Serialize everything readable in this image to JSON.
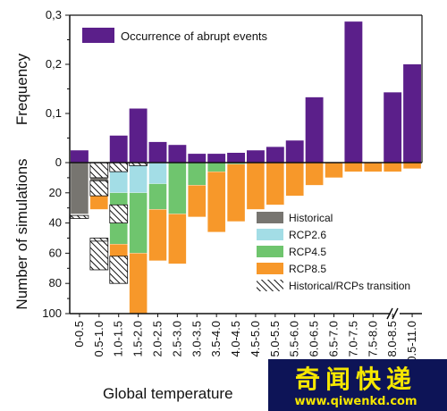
{
  "chart_data": [
    {
      "type": "bar",
      "panel": "top",
      "ylabel": "Frequency",
      "ylim": [
        0,
        0.3
      ],
      "yticks": [
        0,
        0.1,
        0.2,
        0.3
      ],
      "ytick_labels": [
        "0",
        "0,1",
        "0,2",
        "0,3"
      ],
      "categories": [
        "0-0.5",
        "0.5-1.0",
        "1.0-1.5",
        "1.5-2.0",
        "2.0-2.5",
        "2.5-3.0",
        "3.0-3.5",
        "3.5-4.0",
        "4.0-4.5",
        "4.5-5.0",
        "5.0-5.5",
        "5.5-6.0",
        "6.0-6.5",
        "6.5-7.0",
        "7.0-7.5",
        "7.5-8.0",
        "8.0-8.5",
        "10.5-11.0"
      ],
      "series": [
        {
          "name": "Occurrence of abrupt events",
          "color": "#5b1f8a",
          "values": [
            0.025,
            0,
            0.055,
            0.11,
            0.042,
            0.036,
            0.018,
            0.018,
            0.02,
            0.025,
            0.032,
            0.045,
            0.133,
            0,
            0.287,
            0,
            0.143,
            0.2
          ]
        }
      ],
      "legend": "top-left"
    },
    {
      "type": "bar",
      "panel": "bottom",
      "stacked": true,
      "direction": "downward",
      "ylabel": "Number of simulations",
      "ylim": [
        0,
        100
      ],
      "yticks": [
        0,
        20,
        40,
        60,
        80,
        100
      ],
      "series": [
        {
          "name": "Historical",
          "color": "#777570",
          "values": [
            34,
            12,
            0,
            0,
            0,
            0,
            0,
            0,
            0,
            0,
            0,
            0,
            0,
            0,
            0,
            0,
            0,
            0
          ]
        },
        {
          "name": "RCP2.6",
          "color": "#a3dde6",
          "values": [
            0,
            0,
            20,
            20,
            14,
            0,
            0,
            0,
            0,
            0,
            0,
            0,
            0,
            0,
            0,
            0,
            0,
            0
          ]
        },
        {
          "name": "RCP4.5",
          "color": "#6fc56e",
          "values": [
            0,
            0,
            34,
            40,
            17,
            34,
            15,
            6,
            1,
            0,
            0,
            0,
            0,
            0,
            0,
            0,
            0,
            0
          ]
        },
        {
          "name": "RCP8.5",
          "color": "#f7982a",
          "values": [
            0,
            19,
            19,
            40,
            34,
            33,
            21,
            40,
            38,
            31,
            28,
            22,
            15,
            10,
            6,
            6,
            6,
            4
          ]
        },
        {
          "name": "Historical/RCPs transition",
          "color": "#ffffff",
          "hatch_segments": [
            [
              0,
              35,
              37
            ],
            [
              1,
              0,
              10
            ],
            [
              1,
              12,
              22
            ],
            [
              1,
              50,
              52
            ],
            [
              1,
              52,
              71
            ],
            [
              2,
              0,
              6
            ],
            [
              2,
              28,
              40
            ],
            [
              2,
              62,
              80
            ],
            [
              3,
              0,
              2
            ]
          ]
        }
      ],
      "legend": "bottom-right"
    }
  ],
  "xlabel": "Global temperature",
  "watermark": {
    "text": "奇闻快递",
    "url": "www.qiwenkd.com"
  }
}
